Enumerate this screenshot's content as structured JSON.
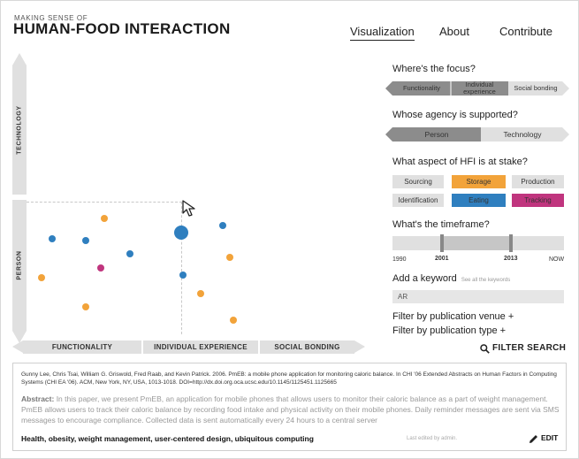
{
  "header": {
    "subtitle": "MAKING SENSE OF",
    "title": "HUMAN-FOOD INTERACTION",
    "nav": [
      {
        "label": "Visualization",
        "active": true
      },
      {
        "label": "About",
        "active": false
      },
      {
        "label": "Contribute",
        "active": false
      }
    ]
  },
  "axes": {
    "vertical": [
      "TECHNOLOGY",
      "PERSON"
    ],
    "horizontal": [
      "FUNCTIONALITY",
      "INDIVIDUAL EXPERIENCE",
      "SOCIAL BONDING"
    ]
  },
  "colors": {
    "orange": "#f2a33a",
    "blue": "#2f7fbf",
    "magenta": "#c0357e",
    "axis_gray": "#e0e0e0"
  },
  "scatter_points": [
    {
      "color": "orange",
      "size": "small"
    },
    {
      "color": "blue",
      "size": "small"
    },
    {
      "color": "blue",
      "size": "small"
    },
    {
      "color": "blue",
      "size": "large"
    },
    {
      "color": "blue",
      "size": "small"
    },
    {
      "color": "blue",
      "size": "small"
    },
    {
      "color": "orange",
      "size": "small"
    },
    {
      "color": "magenta",
      "size": "small"
    },
    {
      "color": "orange",
      "size": "small"
    },
    {
      "color": "blue",
      "size": "small"
    },
    {
      "color": "orange",
      "size": "small"
    },
    {
      "color": "orange",
      "size": "small"
    },
    {
      "color": "orange",
      "size": "small"
    }
  ],
  "filters": {
    "focus": {
      "question": "Where's the focus?",
      "options": [
        "Functionality",
        "Individual experience",
        "Social bonding"
      ],
      "selected": [
        "Functionality",
        "Individual experience"
      ]
    },
    "agency": {
      "question": "Whose agency is supported?",
      "options": [
        "Person",
        "Technology"
      ],
      "selected": "Person"
    },
    "aspect": {
      "question": "What aspect of HFI is at stake?",
      "options": [
        {
          "label": "Sourcing",
          "color": "none"
        },
        {
          "label": "Storage",
          "color": "orange"
        },
        {
          "label": "Production",
          "color": "none"
        },
        {
          "label": "Identification",
          "color": "none"
        },
        {
          "label": "Eating",
          "color": "blue"
        },
        {
          "label": "Tracking",
          "color": "magenta"
        }
      ]
    },
    "timeframe": {
      "question": "What's the timeframe?",
      "min_label": "1990",
      "start_label": "2001",
      "end_label": "2013",
      "max_label": "NOW"
    },
    "keyword": {
      "label": "Add a keyword",
      "hint": "See all the keywords",
      "value": "AR"
    },
    "venue_label": "Filter by publication venue +",
    "type_label": "Filter by publication type +",
    "search_label": "FILTER SEARCH"
  },
  "detail": {
    "citation": "Gunny Lee, Chris Tsai, William G. Griswold, Fred Raab, and Kevin Patrick. 2006. PmEB: a mobile phone application for monitoring caloric balance. In CHI '06 Extended Abstracts on Human Factors in Computing Systems (CHI EA '06). ACM, New York, NY, USA, 1013-1018. DOI=http://dx.doi.org.oca.ucsc.edu/10.1145/1125451.1125665",
    "abstract_label": "Abstract:",
    "abstract": "In this paper, we present PmEB, an application for mobile phones that allows users to monitor their caloric balance as a part of weight management. PmEB allows users to track their caloric balance by recording food intake and physical activity on their mobile phones. Daily reminder messages are sent via SMS messages to encourage compliance. Collected data is sent automatically every 24 hours to a central server",
    "keywords": "Health, obesity, weight management, user-centered design, ubiquitous computing",
    "edited": "Last edited by admin.",
    "edit_label": "EDIT"
  }
}
